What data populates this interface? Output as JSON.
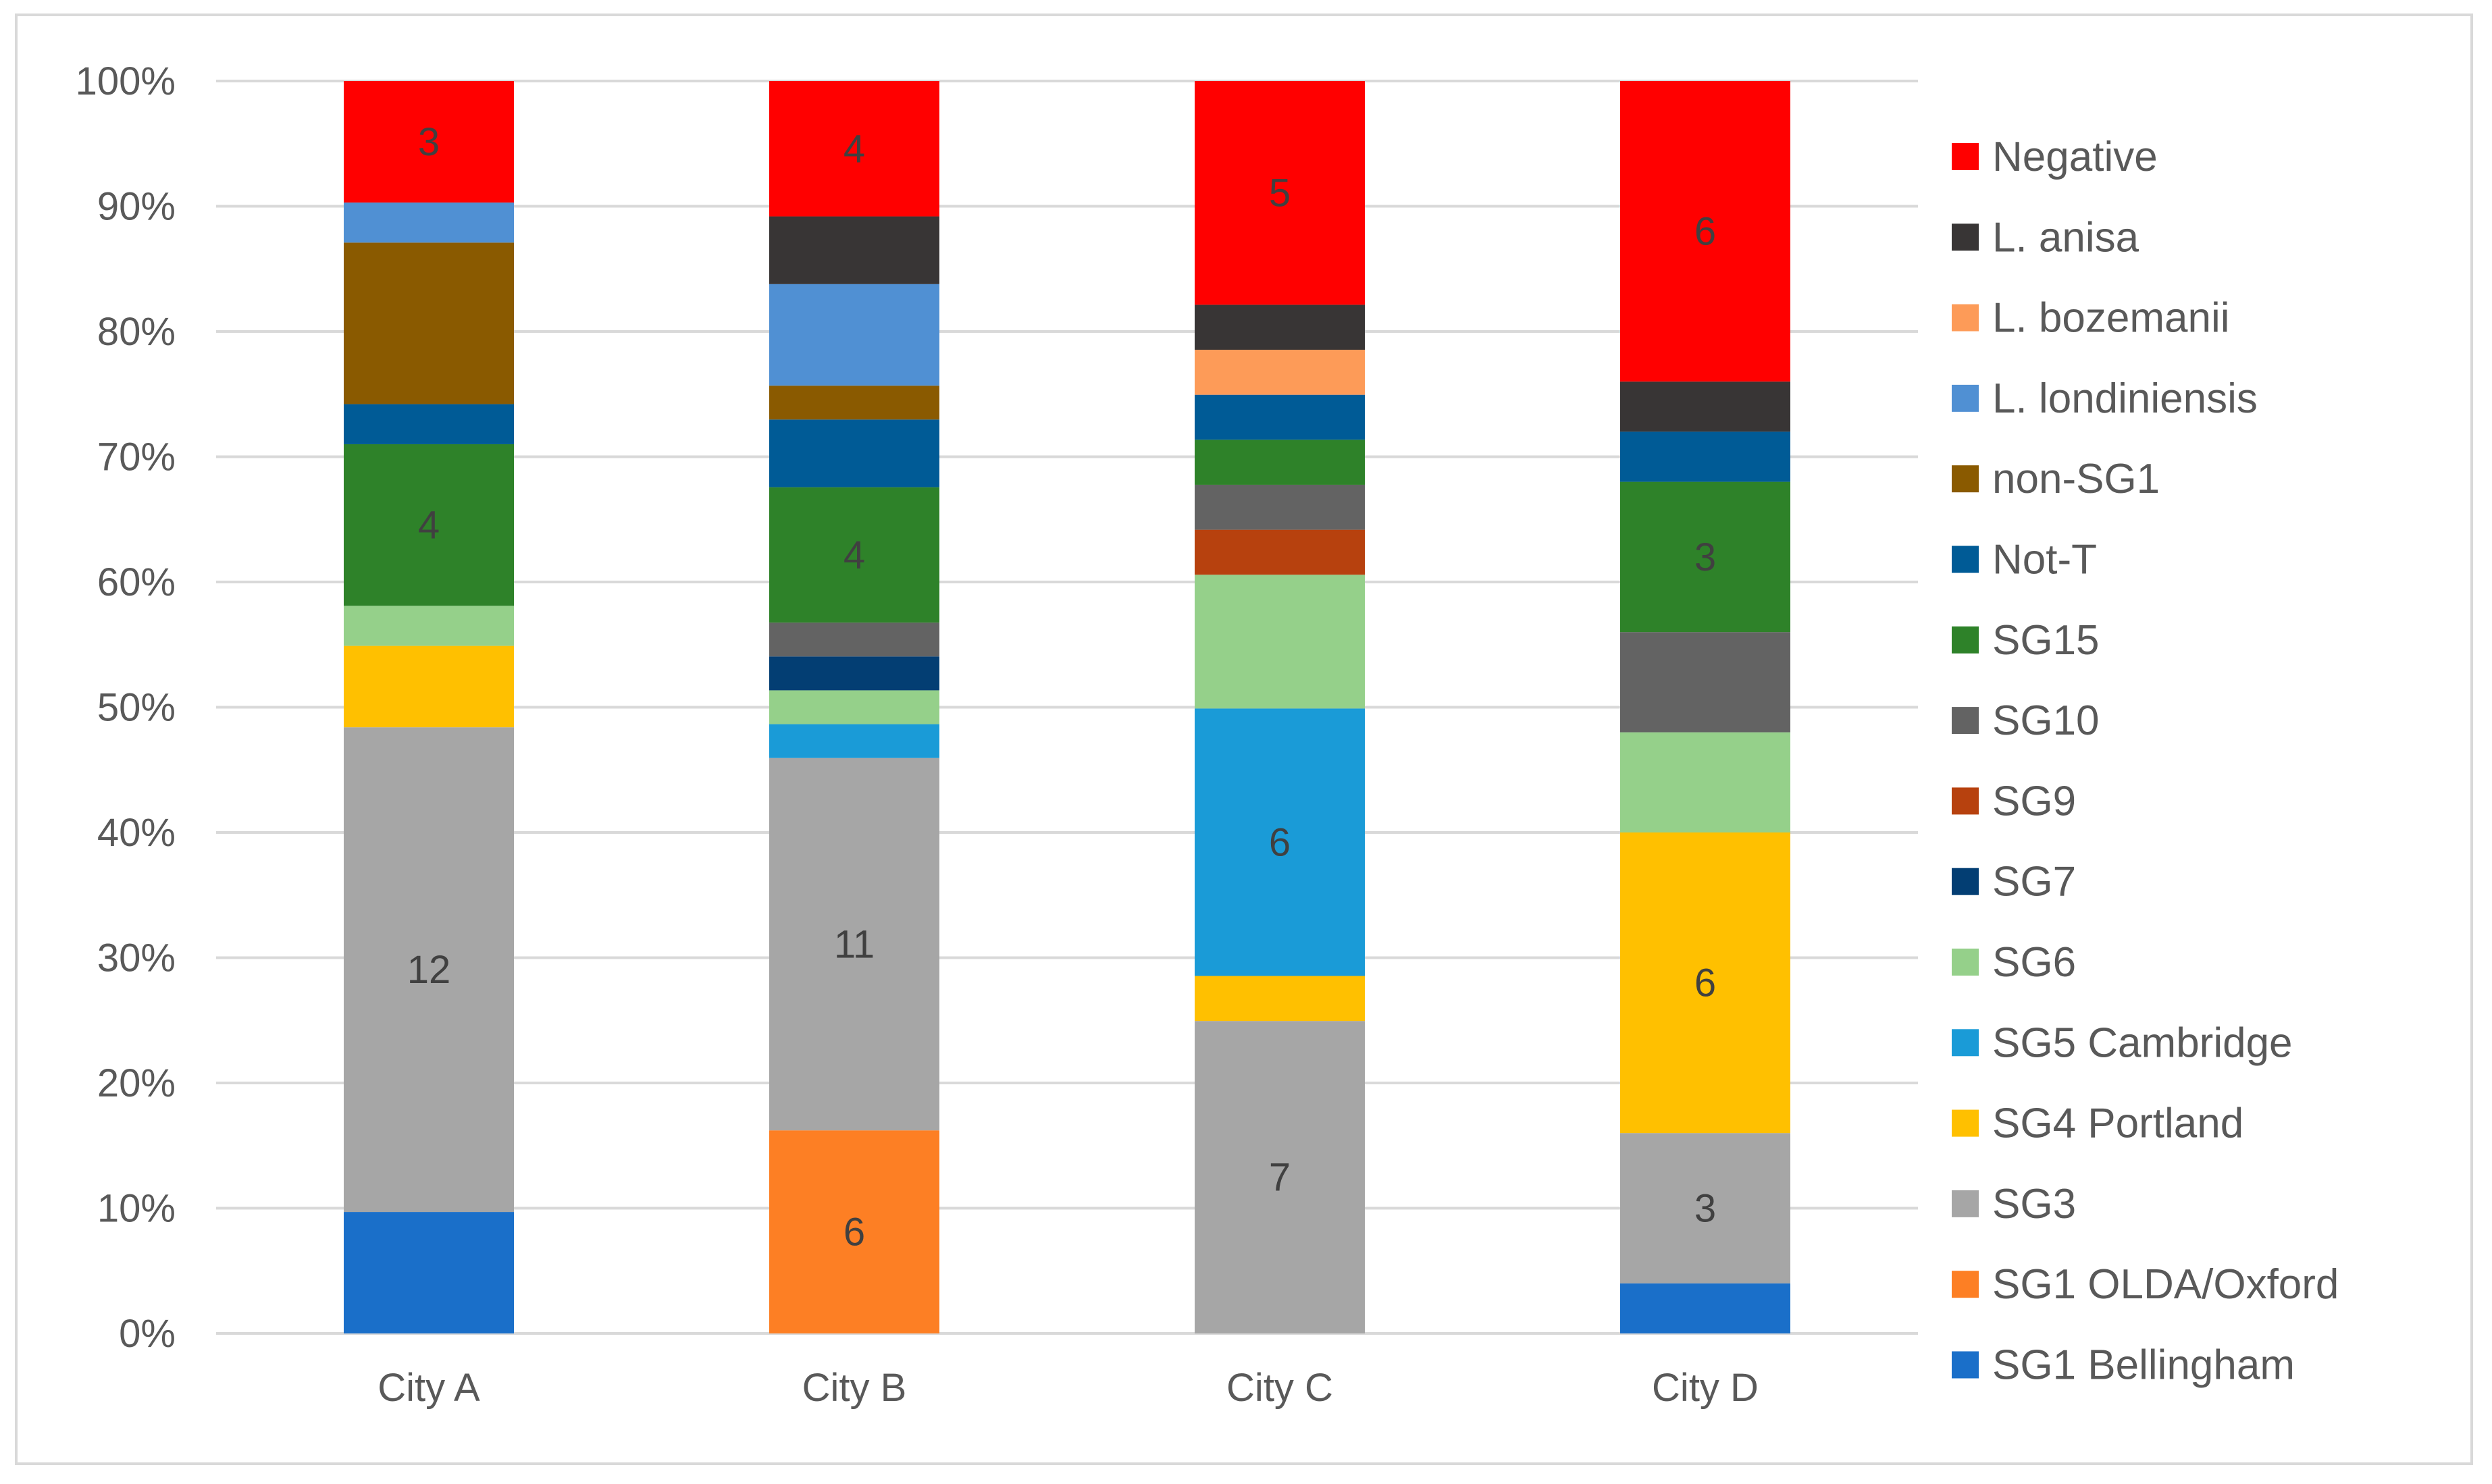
{
  "chart_data": {
    "type": "stacked-bar-100",
    "title": "",
    "xlabel": "",
    "ylabel": "",
    "ylim": [
      0,
      100
    ],
    "y_ticks": [
      "0%",
      "10%",
      "20%",
      "30%",
      "40%",
      "50%",
      "60%",
      "70%",
      "80%",
      "90%",
      "100%"
    ],
    "categories": [
      "City A",
      "City B",
      "City C",
      "City D"
    ],
    "legend_position": "right",
    "gridlines": true,
    "series": [
      {
        "name": "SG1 Bellingham",
        "color": "#1a6fc9",
        "values": [
          9.7,
          0,
          0,
          4
        ]
      },
      {
        "name": "SG1 OLDA/Oxford",
        "color": "#fd7f24",
        "values": [
          0,
          16.2,
          0,
          0
        ]
      },
      {
        "name": "SG3",
        "color": "#a6a6a6",
        "values": [
          38.7,
          29.7,
          25.0,
          12
        ]
      },
      {
        "name": "SG4 Portland",
        "color": "#ffc000",
        "values": [
          6.5,
          0,
          3.6,
          24
        ]
      },
      {
        "name": "SG5 Cambridge",
        "color": "#1a9bd7",
        "values": [
          0,
          2.7,
          21.4,
          0
        ]
      },
      {
        "name": "SG6",
        "color": "#95d08a",
        "values": [
          3.2,
          2.7,
          10.7,
          8
        ]
      },
      {
        "name": "SG7",
        "color": "#033e73",
        "values": [
          0,
          2.7,
          0,
          0
        ]
      },
      {
        "name": "SG9",
        "color": "#b7410e",
        "values": [
          0,
          0,
          3.6,
          0
        ]
      },
      {
        "name": "SG10",
        "color": "#636363",
        "values": [
          0,
          2.7,
          3.6,
          8
        ]
      },
      {
        "name": "SG15",
        "color": "#2e8229",
        "values": [
          12.9,
          10.8,
          3.6,
          12
        ]
      },
      {
        "name": "Not-T",
        "color": "#005b96",
        "values": [
          3.2,
          5.4,
          3.6,
          4
        ]
      },
      {
        "name": "non-SG1",
        "color": "#8a5a00",
        "values": [
          12.9,
          2.7,
          0,
          0
        ]
      },
      {
        "name": "L. londiniensis",
        "color": "#5090d3",
        "values": [
          3.2,
          8.1,
          0,
          0
        ]
      },
      {
        "name": "L. bozemanii",
        "color": "#fd9b58",
        "values": [
          0,
          0,
          3.6,
          0
        ]
      },
      {
        "name": "L. anisa",
        "color": "#383535",
        "values": [
          0,
          5.4,
          3.6,
          4
        ]
      },
      {
        "name": "Negative",
        "color": "#ff0000",
        "values": [
          9.7,
          10.8,
          17.9,
          24
        ]
      }
    ],
    "data_labels": [
      {
        "category": "City A",
        "series": "Negative",
        "text": "3"
      },
      {
        "category": "City A",
        "series": "SG15",
        "text": "4"
      },
      {
        "category": "City A",
        "series": "SG3",
        "text": "12"
      },
      {
        "category": "City B",
        "series": "Negative",
        "text": "4"
      },
      {
        "category": "City B",
        "series": "SG15",
        "text": "4"
      },
      {
        "category": "City B",
        "series": "SG3",
        "text": "11"
      },
      {
        "category": "City B",
        "series": "SG1 OLDA/Oxford",
        "text": "6"
      },
      {
        "category": "City C",
        "series": "Negative",
        "text": "5"
      },
      {
        "category": "City C",
        "series": "SG5 Cambridge",
        "text": "6"
      },
      {
        "category": "City C",
        "series": "SG3",
        "text": "7"
      },
      {
        "category": "City D",
        "series": "Negative",
        "text": "6"
      },
      {
        "category": "City D",
        "series": "SG15",
        "text": "3"
      },
      {
        "category": "City D",
        "series": "SG4 Portland",
        "text": "6"
      },
      {
        "category": "City D",
        "series": "SG3",
        "text": "3"
      }
    ],
    "legend_order": [
      "Negative",
      "L. anisa",
      "L. bozemanii",
      "L. londiniensis",
      "non-SG1",
      "Not-T",
      "SG15",
      "SG10",
      "SG9",
      "SG7",
      "SG6",
      "SG5 Cambridge",
      "SG4 Portland",
      "SG3",
      "SG1 OLDA/Oxford",
      "SG1 Bellingham"
    ]
  }
}
